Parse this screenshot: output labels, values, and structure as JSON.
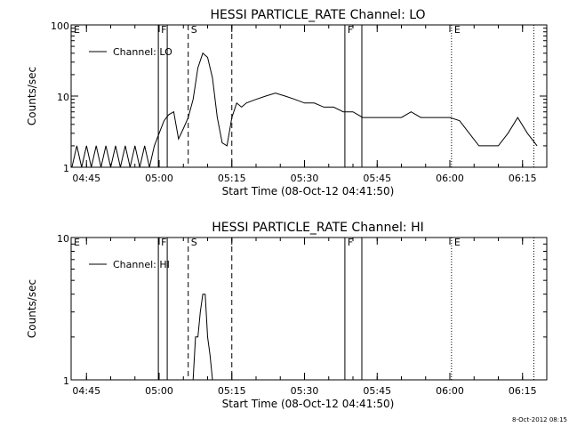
{
  "footer": {
    "stamp": "8-Oct-2012 08:15"
  },
  "chart_data": [
    {
      "type": "line",
      "title": "HESSI PARTICLE_RATE Channel: LO",
      "xlabel": "Start Time (08-Oct-12 04:41:50)",
      "ylabel": "Counts/sec",
      "yscale": "log",
      "xlim": [
        "04:41:50",
        "06:20:00"
      ],
      "ylim": [
        1,
        100
      ],
      "x_ticks": [
        "04:45",
        "05:00",
        "05:15",
        "05:30",
        "05:45",
        "06:00",
        "06:15"
      ],
      "y_ticks": [
        "1",
        "10",
        "100"
      ],
      "legend": "top-left",
      "series": [
        {
          "name": "Channel: LO",
          "x": [
            "04:42",
            "04:43",
            "04:44",
            "04:45",
            "04:46",
            "04:47",
            "04:48",
            "04:49",
            "04:50",
            "04:51",
            "04:52",
            "04:53",
            "04:54",
            "04:55",
            "04:56",
            "04:57",
            "04:58",
            "04:59",
            "05:00",
            "05:01",
            "05:02",
            "05:03",
            "05:04",
            "05:05",
            "05:06",
            "05:07",
            "05:08",
            "05:09",
            "05:10",
            "05:11",
            "05:12",
            "05:13",
            "05:14",
            "05:15",
            "05:16",
            "05:17",
            "05:18",
            "05:20",
            "05:22",
            "05:24",
            "05:26",
            "05:28",
            "05:30",
            "05:32",
            "05:34",
            "05:36",
            "05:38",
            "05:40",
            "05:42",
            "05:44",
            "05:46",
            "05:48",
            "05:50",
            "05:52",
            "05:54",
            "05:56",
            "05:58",
            "06:00",
            "06:02",
            "06:04",
            "06:06",
            "06:08",
            "06:10",
            "06:12",
            "06:14",
            "06:16",
            "06:18"
          ],
          "values": [
            1,
            2,
            1,
            2,
            1,
            2,
            1,
            2,
            1,
            2,
            1,
            2,
            1,
            2,
            1,
            2,
            1,
            2,
            3,
            4.5,
            5.5,
            6,
            2.5,
            3.5,
            5,
            9,
            25,
            40,
            35,
            18,
            5,
            2.2,
            2,
            5,
            8,
            7,
            8,
            9,
            10,
            11,
            10,
            9,
            8,
            8,
            7,
            7,
            6,
            6,
            5,
            5,
            5,
            5,
            5,
            6,
            5,
            5,
            5,
            5,
            4.5,
            3,
            2,
            2,
            2,
            3,
            5,
            3,
            2
          ]
        }
      ],
      "markers": [
        {
          "label": "E",
          "time": "04:41:50",
          "style": "solid"
        },
        {
          "label": "F",
          "time": "04:59:50",
          "style": "solid"
        },
        {
          "label": "",
          "time": "05:01:40",
          "style": "solid"
        },
        {
          "label": "S",
          "time": "05:06:00",
          "style": "dashed"
        },
        {
          "label": "",
          "time": "05:15:00",
          "style": "dashed"
        },
        {
          "label": "F",
          "time": "05:38:20",
          "style": "solid"
        },
        {
          "label": "",
          "time": "05:41:50",
          "style": "solid"
        },
        {
          "label": "E",
          "time": "06:00:20",
          "style": "dotted"
        },
        {
          "label": "",
          "time": "06:17:20",
          "style": "dotted"
        }
      ]
    },
    {
      "type": "line",
      "title": "HESSI PARTICLE_RATE Channel: HI",
      "xlabel": "Start Time (08-Oct-12 04:41:50)",
      "ylabel": "Counts/sec",
      "yscale": "log",
      "xlim": [
        "04:41:50",
        "06:20:00"
      ],
      "ylim": [
        1,
        10
      ],
      "x_ticks": [
        "04:45",
        "05:00",
        "05:15",
        "05:30",
        "05:45",
        "06:00",
        "06:15"
      ],
      "y_ticks": [
        "1",
        "10"
      ],
      "legend": "top-left",
      "series": [
        {
          "name": "Channel: HI",
          "x": [
            "05:07:00",
            "05:07:30",
            "05:08:00",
            "05:08:30",
            "05:09:00",
            "05:09:30",
            "05:10:00",
            "05:10:30",
            "05:11:00"
          ],
          "values": [
            1,
            2,
            2,
            3,
            4,
            4,
            2,
            1.5,
            1
          ]
        }
      ],
      "markers": [
        {
          "label": "E",
          "time": "04:41:50",
          "style": "solid"
        },
        {
          "label": "F",
          "time": "04:59:50",
          "style": "solid"
        },
        {
          "label": "",
          "time": "05:01:40",
          "style": "solid"
        },
        {
          "label": "S",
          "time": "05:06:00",
          "style": "dashed"
        },
        {
          "label": "",
          "time": "05:15:00",
          "style": "dashed"
        },
        {
          "label": "F",
          "time": "05:38:20",
          "style": "solid"
        },
        {
          "label": "",
          "time": "05:41:50",
          "style": "solid"
        },
        {
          "label": "E",
          "time": "06:00:20",
          "style": "dotted"
        },
        {
          "label": "",
          "time": "06:17:20",
          "style": "dotted"
        }
      ]
    }
  ]
}
